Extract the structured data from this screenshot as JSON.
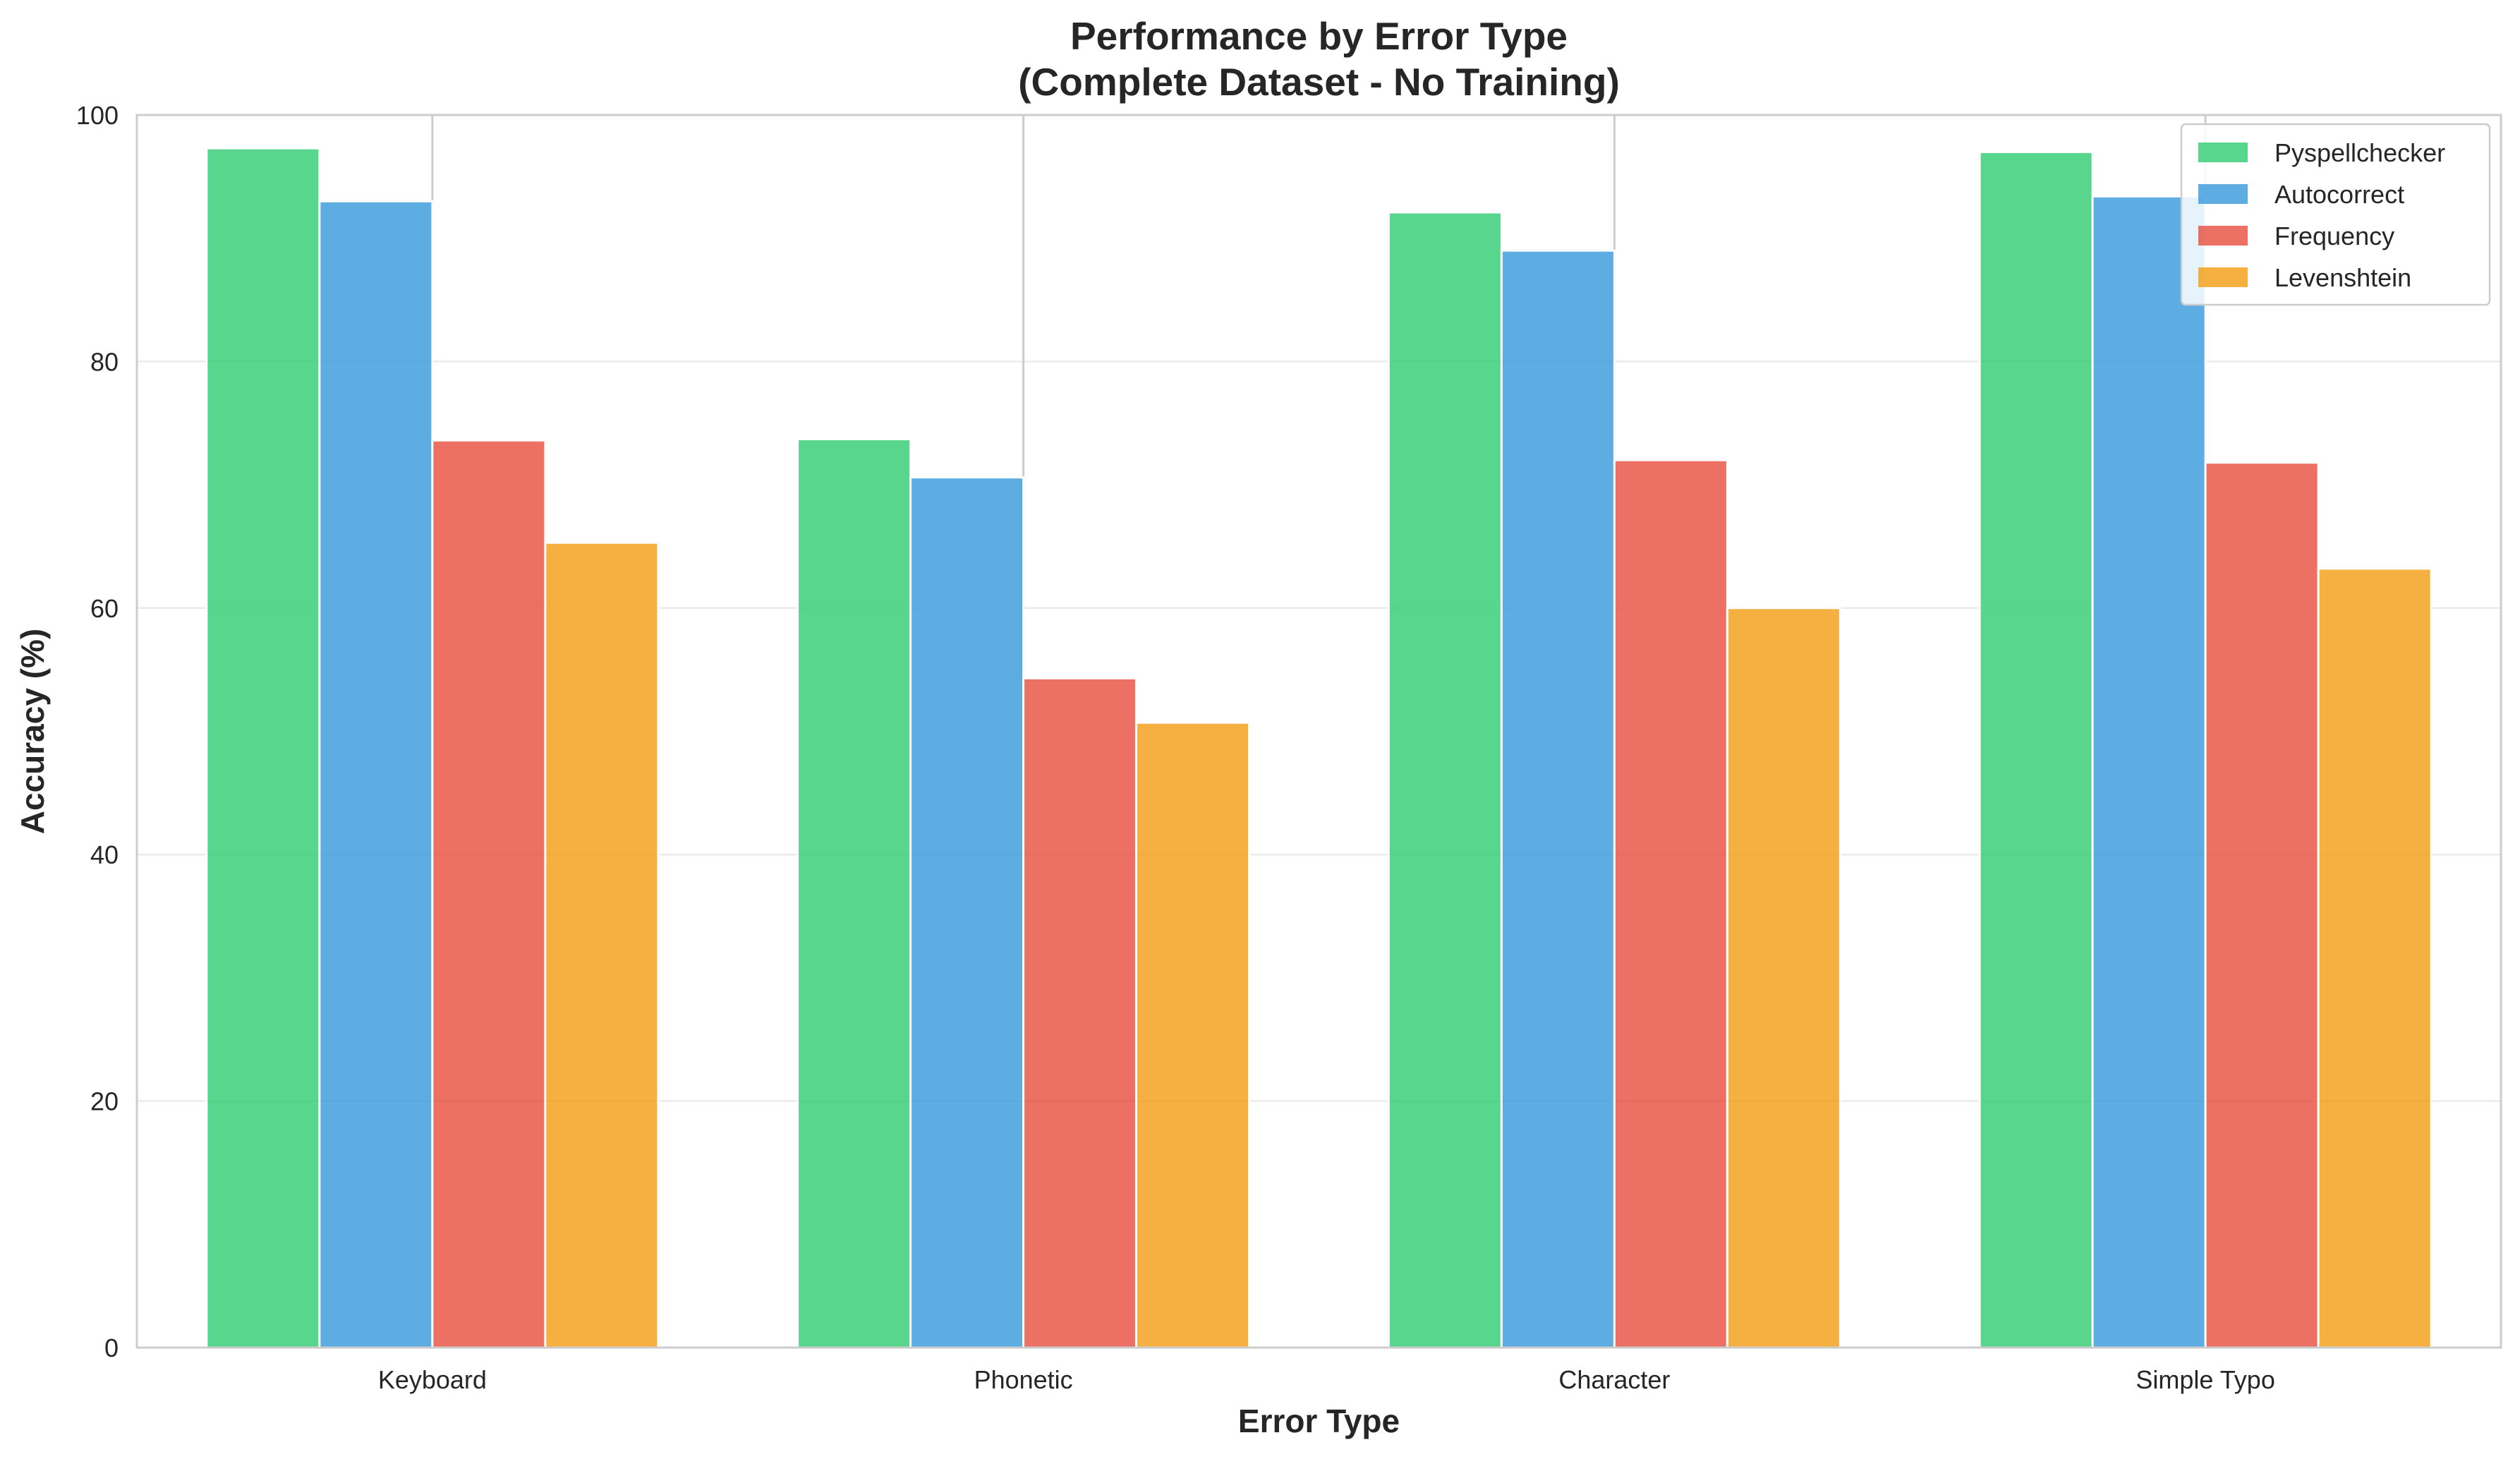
{
  "chart_data": {
    "type": "bar",
    "title": "Performance by Error Type",
    "subtitle": "(Complete Dataset - No Training)",
    "xlabel": "Error Type",
    "ylabel": "Accuracy (%)",
    "categories": [
      "Keyboard",
      "Phonetic",
      "Character",
      "Simple Typo"
    ],
    "ylim": [
      0,
      100
    ],
    "yticks": [
      0,
      20,
      40,
      60,
      80,
      100
    ],
    "grid": "horizontal",
    "legend_position": "top-right",
    "series": [
      {
        "name": "Pyspellchecker",
        "color": "#2ecc71",
        "values": [
          97.3,
          73.7,
          92.1,
          97.0
        ]
      },
      {
        "name": "Autocorrect",
        "color": "#3498db",
        "values": [
          93.0,
          70.6,
          89.0,
          93.4
        ]
      },
      {
        "name": "Frequency",
        "color": "#e74c3c",
        "values": [
          73.6,
          54.3,
          72.0,
          71.8
        ]
      },
      {
        "name": "Levenshtein",
        "color": "#f39c12",
        "values": [
          65.3,
          50.7,
          60.0,
          63.2
        ]
      }
    ]
  }
}
